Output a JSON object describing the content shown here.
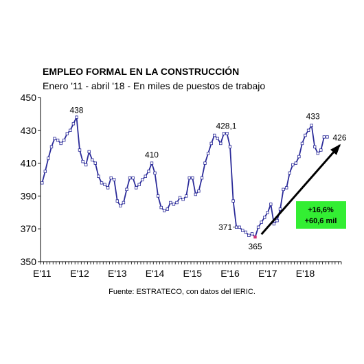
{
  "chart_data": {
    "type": "line",
    "title": "EMPLEO FORMAL EN LA CONSTRUCCIÓN",
    "subtitle": "Enero '11 - abril '18 - En miles de puestos de trabajo",
    "source": "Fuente: ESTRATECO, con datos del IERIC.",
    "ylim": [
      350,
      450
    ],
    "yticks": [
      "350",
      "370",
      "390",
      "410",
      "430",
      "450"
    ],
    "xticks": [
      "E'11",
      "E'12",
      "E'13",
      "E'14",
      "E'15",
      "E'16",
      "E'17",
      "E'18"
    ],
    "grid": false,
    "series": [
      {
        "color": "#2b2b99",
        "values": [
          398,
          405,
          413,
          420,
          425,
          424,
          422,
          424,
          428,
          430,
          434,
          438,
          418,
          411,
          409,
          417,
          412,
          410,
          402,
          398,
          397,
          395,
          401,
          400,
          387,
          384,
          386,
          394,
          401,
          401,
          395,
          397,
          400,
          402,
          405,
          410,
          404,
          390,
          383,
          381,
          382,
          386,
          385,
          386,
          389,
          388,
          390,
          401,
          401,
          391,
          393,
          401,
          410,
          416,
          422,
          427,
          425,
          422,
          428,
          428.1,
          420,
          387,
          371,
          371,
          369,
          368,
          366,
          367,
          365,
          371,
          374,
          377,
          380,
          385,
          373,
          375,
          382,
          394,
          395,
          404,
          409,
          410,
          414,
          422,
          427,
          430,
          433,
          420,
          416,
          418,
          426,
          426
        ]
      }
    ],
    "annotations": [
      {
        "text": "438",
        "index": 11
      },
      {
        "text": "410",
        "index": 35
      },
      {
        "text": "428,1",
        "index": 59
      },
      {
        "text": "371",
        "index": 62
      },
      {
        "text": "365",
        "index": 68
      },
      {
        "text": "433",
        "index": 86
      },
      {
        "text": "426",
        "index": 91
      }
    ],
    "badge": {
      "line1": "+16,6%",
      "line2": "+60,6 mil",
      "color": "#33ee33"
    },
    "arrow": {
      "from_index": 70,
      "from_value": 365,
      "to_index": 95,
      "to_value": 421
    },
    "trough_marker_color": "#cc3377"
  }
}
